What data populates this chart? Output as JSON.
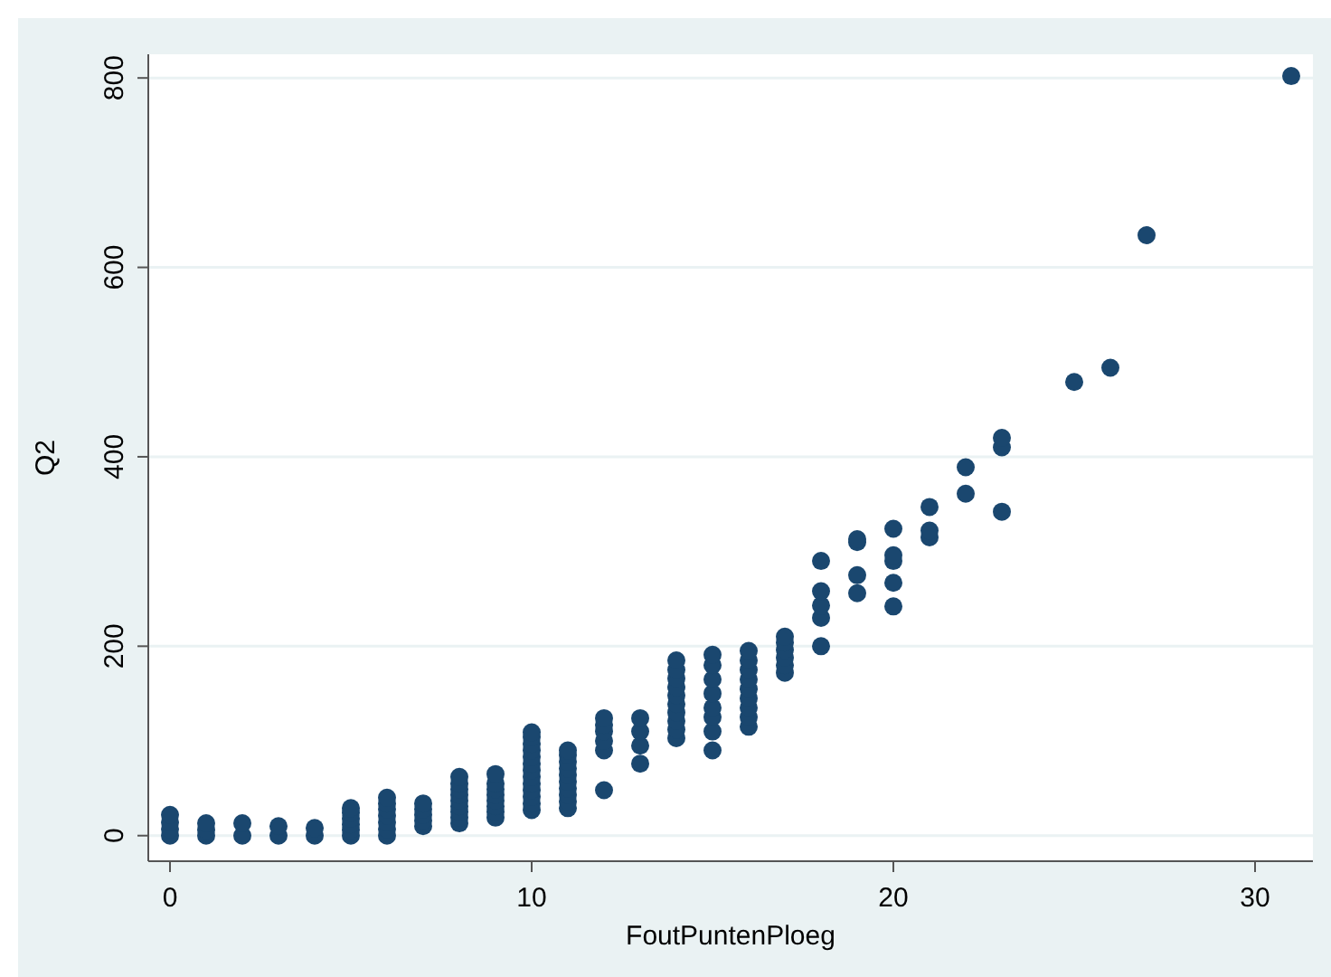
{
  "chart_data": {
    "type": "scatter",
    "xlabel": "FoutPuntenPloeg",
    "ylabel": "Q2",
    "series": [
      {
        "color": "#1a476f",
        "x": [
          0,
          0,
          0,
          0,
          1,
          1,
          1,
          2,
          2,
          3,
          3,
          4,
          4,
          5,
          5,
          5,
          5,
          5,
          5,
          6,
          6,
          6,
          6,
          6,
          6,
          6,
          7,
          7,
          7,
          7,
          7,
          8,
          8,
          8,
          8,
          8,
          8,
          8,
          8,
          8,
          9,
          9,
          9,
          9,
          9,
          9,
          9,
          9,
          10,
          10,
          10,
          10,
          10,
          10,
          10,
          10,
          10,
          10,
          10,
          10,
          10,
          11,
          11,
          11,
          11,
          11,
          11,
          11,
          11,
          11,
          11,
          12,
          12,
          12,
          12,
          12,
          12,
          13,
          13,
          13,
          13,
          14,
          14,
          14,
          14,
          14,
          14,
          14,
          14,
          14,
          14,
          15,
          15,
          15,
          15,
          15,
          15,
          15,
          15,
          16,
          16,
          16,
          16,
          16,
          16,
          16,
          16,
          16,
          17,
          17,
          17,
          17,
          17,
          17,
          18,
          18,
          18,
          18,
          18,
          19,
          19,
          19,
          19,
          20,
          20,
          20,
          20,
          20,
          21,
          21,
          21,
          22,
          22,
          23,
          23,
          23,
          25,
          26,
          27,
          31
        ],
        "values": [
          0,
          7,
          14,
          22,
          0,
          6,
          13,
          0,
          13,
          0,
          10,
          0,
          8,
          0,
          6,
          12,
          18,
          24,
          29,
          0,
          7,
          14,
          21,
          28,
          34,
          40,
          10,
          16,
          22,
          28,
          34,
          13,
          19,
          25,
          31,
          37,
          43,
          49,
          55,
          62,
          19,
          25,
          31,
          37,
          43,
          49,
          55,
          65,
          27,
          34,
          41,
          48,
          55,
          62,
          69,
          76,
          83,
          90,
          97,
          104,
          109,
          29,
          36,
          43,
          50,
          57,
          64,
          71,
          78,
          85,
          90,
          48,
          90,
          100,
          110,
          117,
          124,
          76,
          95,
          110,
          124,
          103,
          112,
          121,
          130,
          139,
          148,
          157,
          166,
          175,
          185,
          90,
          110,
          125,
          135,
          150,
          165,
          180,
          191,
          115,
          125,
          135,
          145,
          155,
          165,
          175,
          185,
          195,
          172,
          180,
          188,
          196,
          204,
          210,
          200,
          230,
          243,
          258,
          290,
          256,
          275,
          310,
          313,
          242,
          267,
          290,
          296,
          324,
          315,
          322,
          347,
          361,
          389,
          342,
          410,
          420,
          479,
          494,
          634,
          802
        ]
      }
    ],
    "xlim": [
      -0.6,
      31.6
    ],
    "ylim": [
      -27,
      825
    ],
    "xticks": [
      0,
      10,
      20,
      30
    ],
    "yticks": [
      0,
      200,
      400,
      600,
      800
    ],
    "grid": "y",
    "marker": "circle"
  }
}
